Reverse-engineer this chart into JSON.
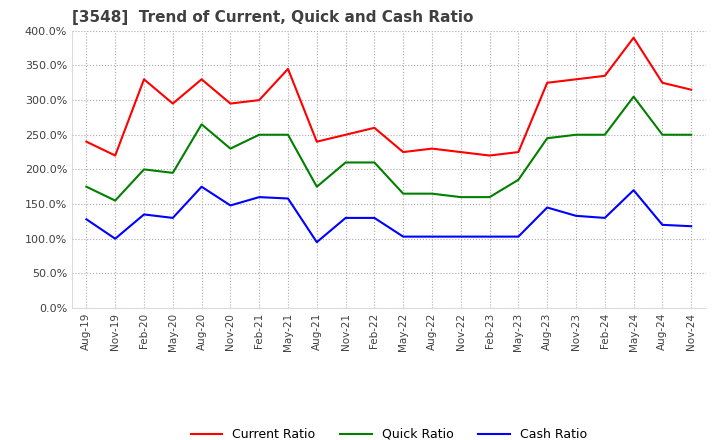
{
  "title": "[3548]  Trend of Current, Quick and Cash Ratio",
  "x_labels": [
    "Aug-19",
    "Nov-19",
    "Feb-20",
    "May-20",
    "Aug-20",
    "Nov-20",
    "Feb-21",
    "May-21",
    "Aug-21",
    "Nov-21",
    "Feb-22",
    "May-22",
    "Aug-22",
    "Nov-22",
    "Feb-23",
    "May-23",
    "Aug-23",
    "Nov-23",
    "Feb-24",
    "May-24",
    "Aug-24",
    "Nov-24"
  ],
  "current_ratio": [
    240,
    220,
    330,
    295,
    330,
    295,
    300,
    345,
    240,
    250,
    260,
    225,
    230,
    225,
    220,
    225,
    325,
    330,
    335,
    390,
    325,
    315
  ],
  "quick_ratio": [
    175,
    155,
    200,
    195,
    265,
    230,
    250,
    250,
    175,
    210,
    210,
    165,
    165,
    160,
    160,
    185,
    245,
    250,
    250,
    305,
    250,
    250
  ],
  "cash_ratio": [
    128,
    100,
    135,
    130,
    175,
    148,
    160,
    158,
    95,
    130,
    130,
    103,
    103,
    103,
    103,
    103,
    145,
    133,
    130,
    170,
    120,
    118
  ],
  "ylim": [
    0,
    400
  ],
  "yticks": [
    0,
    50,
    100,
    150,
    200,
    250,
    300,
    350,
    400
  ],
  "current_color": "#ff0000",
  "quick_color": "#008000",
  "cash_color": "#0000ff",
  "bg_color": "#ffffff",
  "grid_color": "#aaaaaa",
  "title_color": "#404040",
  "legend_labels": [
    "Current Ratio",
    "Quick Ratio",
    "Cash Ratio"
  ]
}
